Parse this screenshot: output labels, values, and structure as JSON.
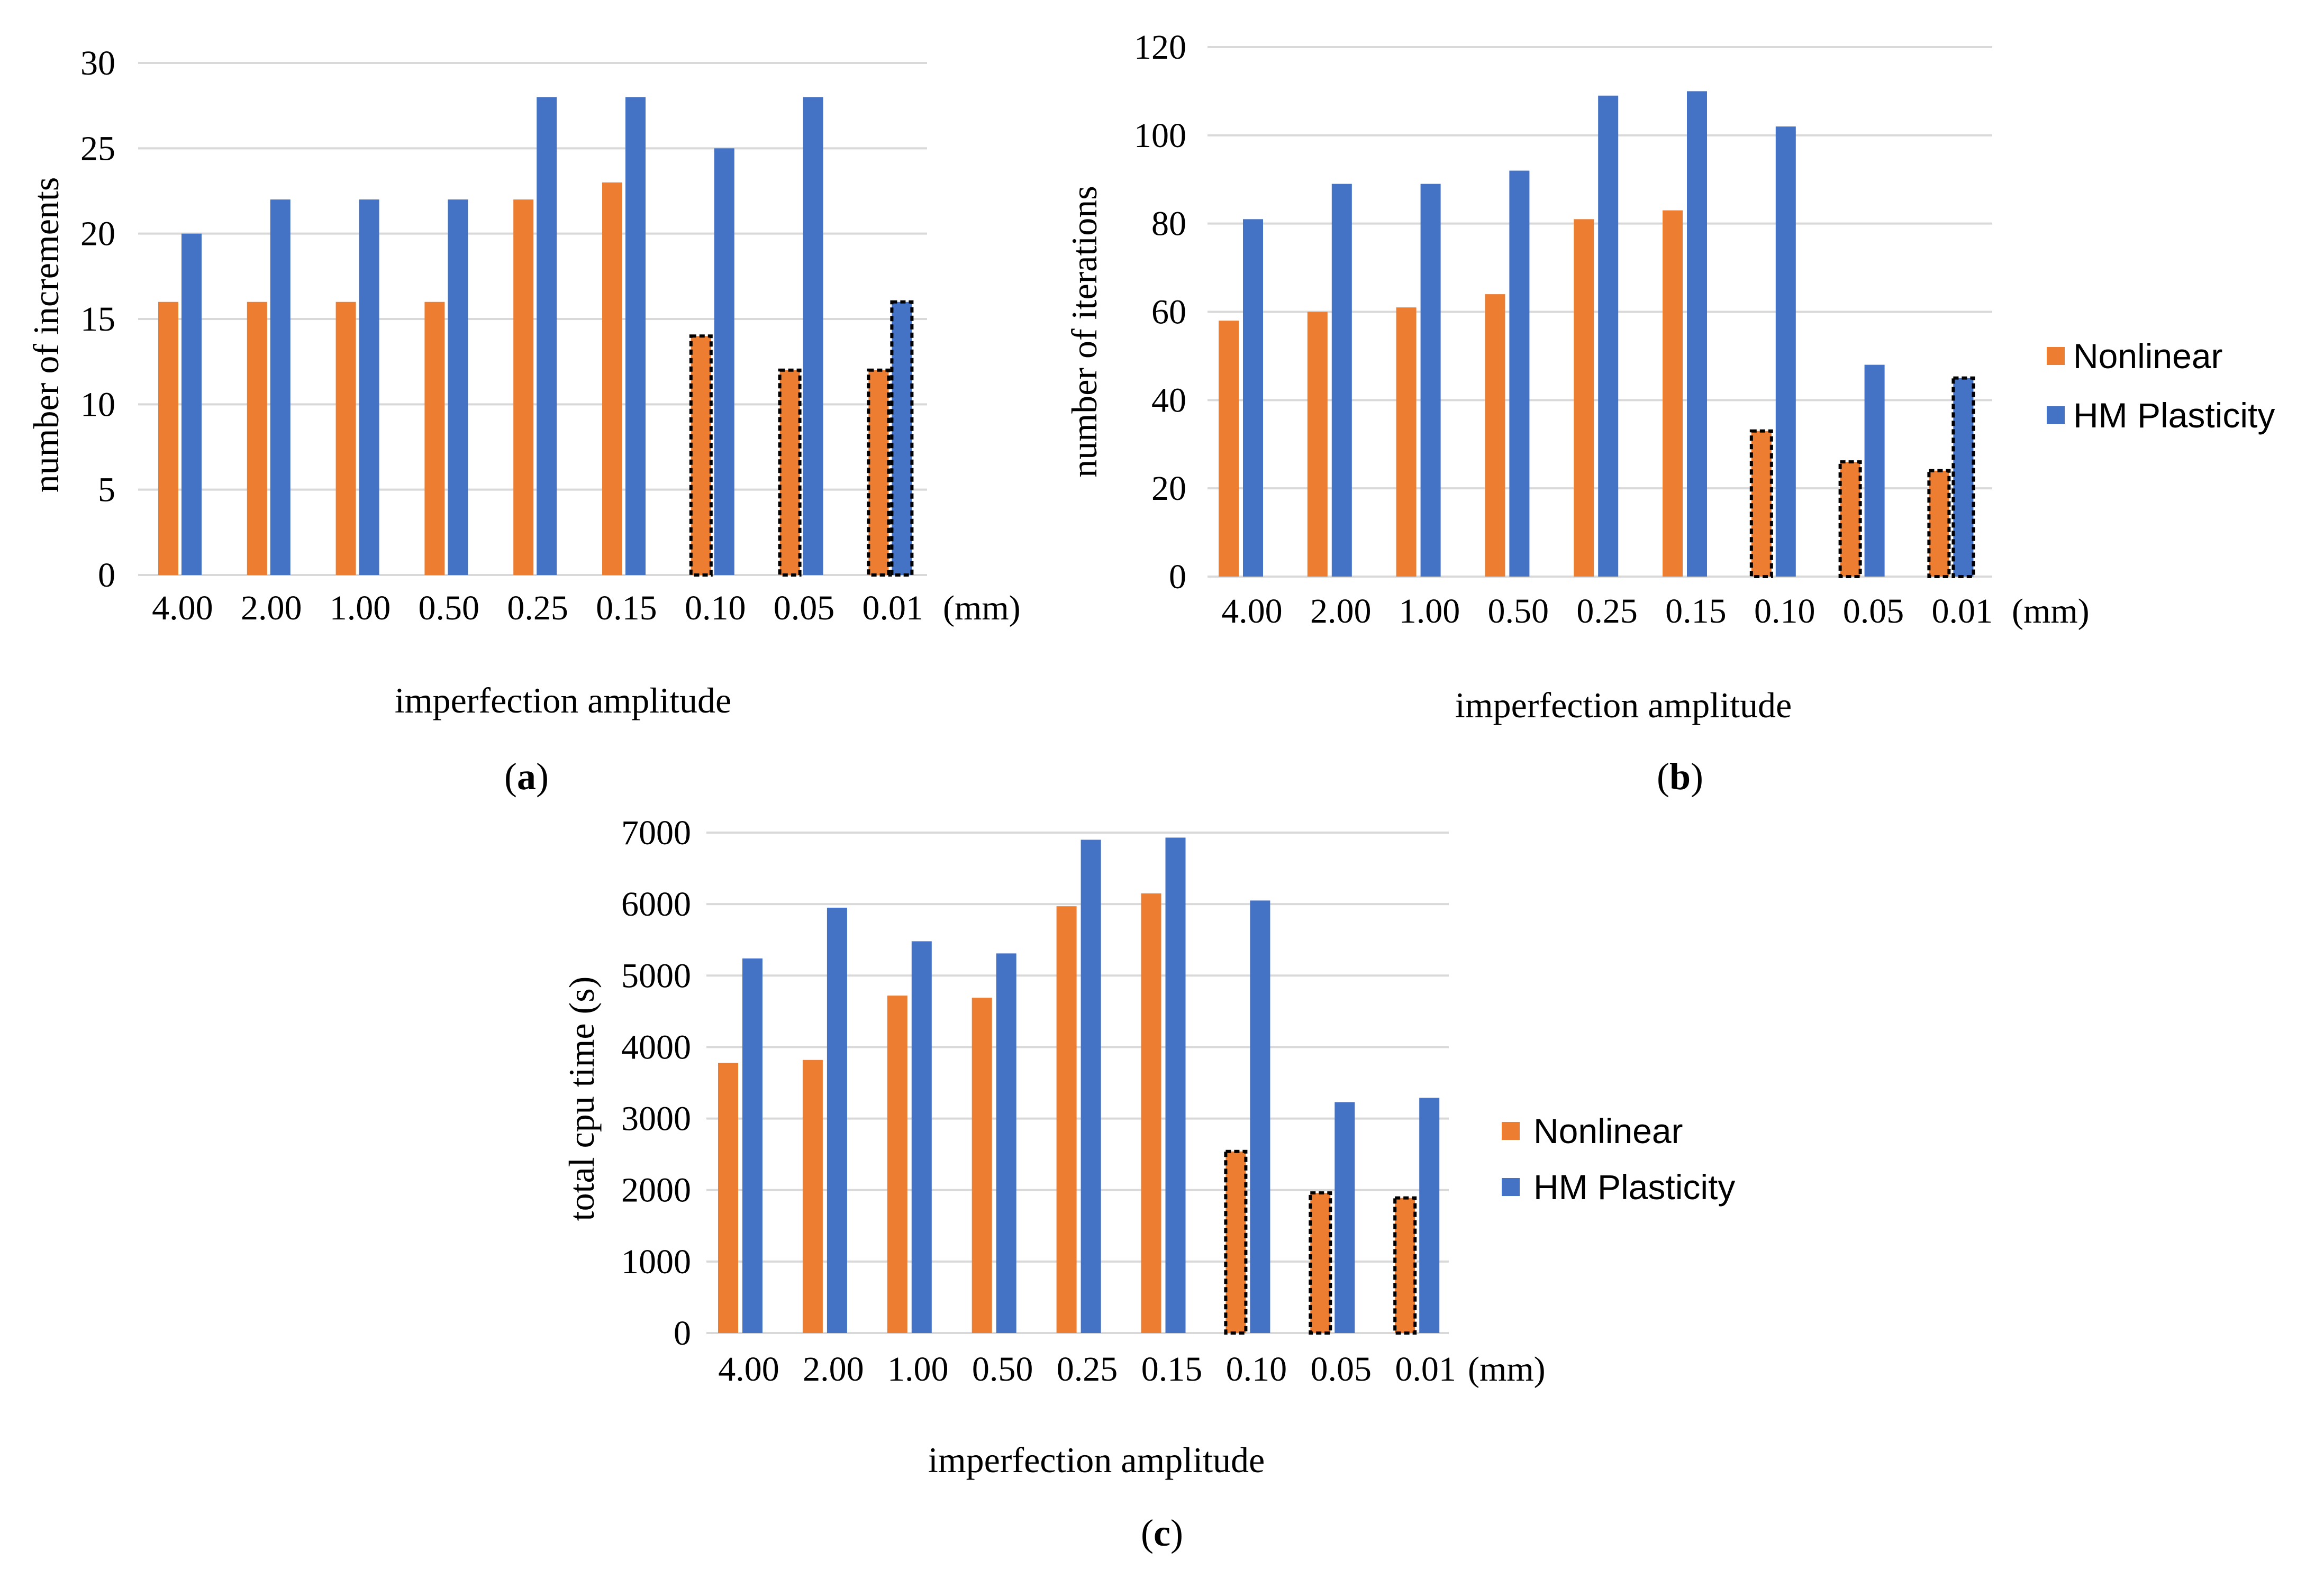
{
  "colors": {
    "nonlinear": "#ED7D31",
    "hm_plasticity": "#4472C4",
    "grid": "#D9D9D9",
    "dashed_outline": "#000000"
  },
  "legend": {
    "nonlinear": "Nonlinear",
    "hm_plasticity": "HM Plasticity"
  },
  "chart_data": [
    {
      "id": "a",
      "type": "bar",
      "panel_label": "a",
      "title": "",
      "xlabel": "imperfection amplitude",
      "ylabel": "number of increments",
      "unit_label": "(mm)",
      "categories": [
        "4.00",
        "2.00",
        "1.00",
        "0.50",
        "0.25",
        "0.15",
        "0.10",
        "0.05",
        "0.01"
      ],
      "ylim": [
        0,
        30
      ],
      "yticks": [
        0,
        5,
        10,
        15,
        20,
        25,
        30
      ],
      "grid": true,
      "legend_position": "none",
      "series": [
        {
          "name": "Nonlinear",
          "values": [
            16,
            16,
            16,
            16,
            22,
            23,
            14,
            12,
            12
          ],
          "dashed": [
            false,
            false,
            false,
            false,
            false,
            false,
            true,
            true,
            true
          ]
        },
        {
          "name": "HM Plasticity",
          "values": [
            20,
            22,
            22,
            22,
            28,
            28,
            25,
            28,
            16
          ],
          "dashed": [
            false,
            false,
            false,
            false,
            false,
            false,
            false,
            false,
            true
          ]
        }
      ]
    },
    {
      "id": "b",
      "type": "bar",
      "panel_label": "b",
      "title": "",
      "xlabel": "imperfection amplitude",
      "ylabel": "number of iterations",
      "unit_label": "(mm)",
      "categories": [
        "4.00",
        "2.00",
        "1.00",
        "0.50",
        "0.25",
        "0.15",
        "0.10",
        "0.05",
        "0.01"
      ],
      "ylim": [
        0,
        120
      ],
      "yticks": [
        0,
        20,
        40,
        60,
        80,
        100,
        120
      ],
      "grid": true,
      "legend_position": "right",
      "series": [
        {
          "name": "Nonlinear",
          "values": [
            58,
            60,
            61,
            64,
            81,
            83,
            33,
            26,
            24
          ],
          "dashed": [
            false,
            false,
            false,
            false,
            false,
            false,
            true,
            true,
            true
          ]
        },
        {
          "name": "HM Plasticity",
          "values": [
            81,
            89,
            89,
            92,
            109,
            110,
            102,
            48,
            45
          ],
          "dashed": [
            false,
            false,
            false,
            false,
            false,
            false,
            false,
            false,
            true
          ]
        }
      ]
    },
    {
      "id": "c",
      "type": "bar",
      "panel_label": "c",
      "title": "",
      "xlabel": "imperfection amplitude",
      "ylabel": "total cpu time (s)",
      "unit_label": "(mm)",
      "categories": [
        "4.00",
        "2.00",
        "1.00",
        "0.50",
        "0.25",
        "0.15",
        "0.10",
        "0.05",
        "0.01"
      ],
      "ylim": [
        0,
        7000
      ],
      "yticks": [
        0,
        1000,
        2000,
        3000,
        4000,
        5000,
        6000,
        7000
      ],
      "grid": true,
      "legend_position": "right",
      "series": [
        {
          "name": "Nonlinear",
          "values": [
            3780,
            3820,
            4720,
            4690,
            5970,
            6150,
            2540,
            1960,
            1890
          ],
          "dashed": [
            false,
            false,
            false,
            false,
            false,
            false,
            true,
            true,
            true
          ]
        },
        {
          "name": "HM Plasticity",
          "values": [
            5240,
            5950,
            5480,
            5310,
            6900,
            6930,
            6050,
            3230,
            3290
          ],
          "dashed": [
            false,
            false,
            false,
            false,
            false,
            false,
            false,
            false,
            false
          ]
        }
      ]
    }
  ]
}
